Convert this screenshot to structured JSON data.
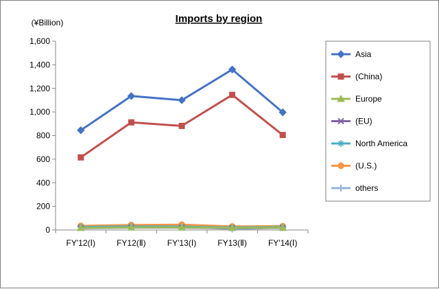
{
  "chart_data": {
    "type": "line",
    "title": "Imports by region",
    "unit_label": "(¥Billion)",
    "categories": [
      "FY'12(Ⅰ)",
      "FY12(Ⅱ)",
      "FY'13(Ⅰ)",
      "FY13(Ⅱ)",
      "FY'14(Ⅰ)"
    ],
    "ylim": [
      0,
      1600
    ],
    "yticks": [
      0,
      200,
      400,
      600,
      800,
      1000,
      1200,
      1400,
      1600
    ],
    "ytick_labels": [
      "0",
      "200",
      "400",
      "600",
      "800",
      "1,000",
      "1,200",
      "1,400",
      "1,600"
    ],
    "grid": false,
    "legend_position": "right",
    "series": [
      {
        "name": "Asia",
        "values": [
          845,
          1135,
          1100,
          1360,
          997
        ],
        "color": "#4472c4",
        "marker": "diamond"
      },
      {
        "name": "(China)",
        "values": [
          615,
          912,
          882,
          1145,
          805
        ],
        "color": "#c0504d",
        "marker": "square"
      },
      {
        "name": "Europe",
        "values": [
          18,
          22,
          22,
          18,
          20
        ],
        "color": "#9bbb59",
        "marker": "triangle"
      },
      {
        "name": "(EU)",
        "values": [
          16,
          20,
          20,
          16,
          18
        ],
        "color": "#8064a2",
        "marker": "x"
      },
      {
        "name": "North America",
        "values": [
          25,
          30,
          28,
          22,
          24
        ],
        "color": "#4bacc6",
        "marker": "star"
      },
      {
        "name": "(U.S.)",
        "values": [
          35,
          42,
          45,
          30,
          32
        ],
        "color": "#f79646",
        "marker": "circle"
      },
      {
        "name": "others",
        "values": [
          28,
          32,
          30,
          8,
          20
        ],
        "color": "#95b3d7",
        "marker": "plus"
      }
    ]
  }
}
